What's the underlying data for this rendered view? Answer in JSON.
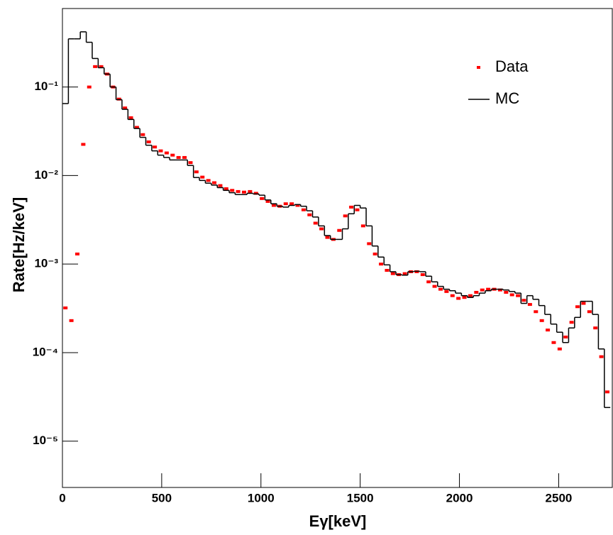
{
  "chart_data": {
    "type": "histogram-log",
    "x_label": "Eγ[keV]",
    "y_label": "Rate[Hz/keV]",
    "x": [
      15,
      45,
      75,
      105,
      135,
      165,
      195,
      225,
      255,
      285,
      315,
      345,
      375,
      405,
      435,
      465,
      495,
      525,
      555,
      585,
      615,
      645,
      675,
      705,
      735,
      765,
      795,
      825,
      855,
      885,
      915,
      945,
      975,
      1005,
      1035,
      1065,
      1095,
      1125,
      1155,
      1185,
      1215,
      1245,
      1275,
      1305,
      1335,
      1365,
      1395,
      1425,
      1455,
      1485,
      1515,
      1545,
      1575,
      1605,
      1635,
      1665,
      1695,
      1725,
      1755,
      1785,
      1815,
      1845,
      1875,
      1905,
      1935,
      1965,
      1995,
      2025,
      2055,
      2085,
      2115,
      2145,
      2175,
      2205,
      2235,
      2265,
      2295,
      2325,
      2355,
      2385,
      2415,
      2445,
      2475,
      2505,
      2535,
      2565,
      2595,
      2625,
      2655,
      2685,
      2715,
      2745
    ],
    "series": [
      {
        "name": "Data",
        "color": "#ff0000",
        "style": "points",
        "values": [
          0.00032,
          0.00023,
          0.0013,
          0.0225,
          0.1,
          0.17,
          0.17,
          0.14,
          0.1,
          0.073,
          0.058,
          0.045,
          0.035,
          0.029,
          0.024,
          0.021,
          0.019,
          0.018,
          0.017,
          0.016,
          0.016,
          0.014,
          0.011,
          0.0096,
          0.0088,
          0.0083,
          0.0077,
          0.0071,
          0.0068,
          0.0066,
          0.0065,
          0.0066,
          0.0063,
          0.0055,
          0.0051,
          0.0046,
          0.0045,
          0.0048,
          0.0048,
          0.0046,
          0.0041,
          0.0036,
          0.0029,
          0.0025,
          0.002,
          0.0019,
          0.0024,
          0.0035,
          0.0044,
          0.0041,
          0.0027,
          0.0017,
          0.0013,
          0.001,
          0.00085,
          0.00078,
          0.00076,
          0.00078,
          0.00082,
          0.00082,
          0.00076,
          0.00063,
          0.00056,
          0.00052,
          0.00049,
          0.00044,
          0.00041,
          0.00042,
          0.00044,
          0.00048,
          0.00051,
          0.00052,
          0.00052,
          0.00051,
          0.00048,
          0.00045,
          0.00044,
          0.00039,
          0.00035,
          0.00029,
          0.00023,
          0.00018,
          0.00013,
          0.00011,
          0.00015,
          0.00022,
          0.00033,
          0.00036,
          0.00029,
          0.00019,
          9e-05,
          3.6e-05
        ]
      },
      {
        "name": "MC",
        "color": "#000000",
        "style": "steps",
        "values": [
          0.065,
          0.35,
          0.35,
          0.42,
          0.32,
          0.21,
          0.165,
          0.14,
          0.1,
          0.072,
          0.056,
          0.043,
          0.034,
          0.027,
          0.022,
          0.019,
          0.017,
          0.016,
          0.015,
          0.015,
          0.015,
          0.013,
          0.0095,
          0.0088,
          0.0082,
          0.0078,
          0.0073,
          0.0068,
          0.0064,
          0.0061,
          0.0061,
          0.0063,
          0.0062,
          0.006,
          0.0053,
          0.0048,
          0.0045,
          0.0044,
          0.0046,
          0.0047,
          0.0045,
          0.004,
          0.0034,
          0.0027,
          0.0021,
          0.0019,
          0.0019,
          0.0025,
          0.0037,
          0.0046,
          0.0043,
          0.0027,
          0.0016,
          0.0012,
          0.00098,
          0.00082,
          0.00076,
          0.00075,
          0.00082,
          0.00083,
          0.00082,
          0.00073,
          0.00063,
          0.00056,
          0.00052,
          0.0005,
          0.00047,
          0.00044,
          0.00042,
          0.00044,
          0.00047,
          0.0005,
          0.00052,
          0.00052,
          0.00051,
          0.00049,
          0.00047,
          0.00036,
          0.00044,
          0.0004,
          0.00034,
          0.00027,
          0.00021,
          0.00017,
          0.00013,
          0.00019,
          0.00025,
          0.00038,
          0.00038,
          0.00027,
          0.00011,
          2.4e-05
        ]
      }
    ],
    "xlim": [
      0,
      2770
    ],
    "xticks": [
      0,
      500,
      1000,
      1500,
      2000,
      2500
    ],
    "ylim": [
      3e-06,
      0.77
    ],
    "log_y": true,
    "yticks": [
      {
        "value": 1e-05,
        "label": "10⁻⁵"
      },
      {
        "value": 0.0001,
        "label": "10⁻⁴"
      },
      {
        "value": 0.001,
        "label": "10⁻³"
      },
      {
        "value": 0.01,
        "label": "10⁻²"
      },
      {
        "value": 0.1,
        "label": "10⁻¹"
      }
    ],
    "legend": "top right"
  }
}
